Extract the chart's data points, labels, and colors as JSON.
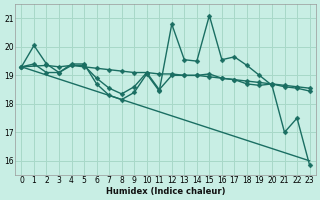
{
  "xlabel": "Humidex (Indice chaleur)",
  "bg_color": "#c8eee4",
  "grid_color": "#a8d8c8",
  "line_color": "#1a6e62",
  "xlim": [
    -0.5,
    23.5
  ],
  "ylim": [
    15.5,
    21.5
  ],
  "xticks": [
    0,
    1,
    2,
    3,
    4,
    5,
    6,
    7,
    8,
    9,
    10,
    11,
    12,
    13,
    14,
    15,
    16,
    17,
    18,
    19,
    20,
    21,
    22,
    23
  ],
  "yticks": [
    16,
    17,
    18,
    19,
    20,
    21
  ],
  "line1_x": [
    0,
    1,
    2,
    3,
    4,
    5,
    6,
    7,
    8,
    9,
    10,
    11,
    12,
    13,
    14,
    15,
    16,
    17,
    18,
    19,
    20,
    21,
    22,
    23
  ],
  "line1_y": [
    19.3,
    20.05,
    19.4,
    19.1,
    19.4,
    19.4,
    18.7,
    18.3,
    18.15,
    18.4,
    19.05,
    18.45,
    20.8,
    19.55,
    19.5,
    21.1,
    19.55,
    19.65,
    19.35,
    19.0,
    18.65,
    17.0,
    17.5,
    15.85
  ],
  "line2_x": [
    0,
    2,
    3,
    4,
    5,
    6,
    7,
    8,
    9,
    10,
    11,
    12,
    13,
    14,
    15,
    16,
    17,
    18,
    19,
    20,
    21,
    22,
    23
  ],
  "line2_y": [
    19.3,
    19.35,
    19.3,
    19.35,
    19.3,
    19.25,
    19.2,
    19.15,
    19.1,
    19.1,
    19.05,
    19.05,
    19.0,
    19.0,
    18.95,
    18.9,
    18.85,
    18.8,
    18.75,
    18.7,
    18.65,
    18.6,
    18.55
  ],
  "line3_x": [
    0,
    1,
    2,
    3,
    4,
    5,
    6,
    7,
    8,
    9,
    10,
    11,
    12,
    13,
    14,
    15,
    16,
    17,
    18,
    19,
    20,
    21,
    22,
    23
  ],
  "line3_y": [
    19.3,
    19.4,
    19.1,
    19.1,
    19.35,
    19.35,
    18.9,
    18.55,
    18.35,
    18.6,
    19.1,
    18.5,
    19.0,
    19.0,
    19.0,
    19.05,
    18.9,
    18.85,
    18.7,
    18.65,
    18.7,
    18.6,
    18.55,
    18.45
  ],
  "line4_x": [
    0,
    23
  ],
  "line4_y": [
    19.3,
    16.0
  ]
}
